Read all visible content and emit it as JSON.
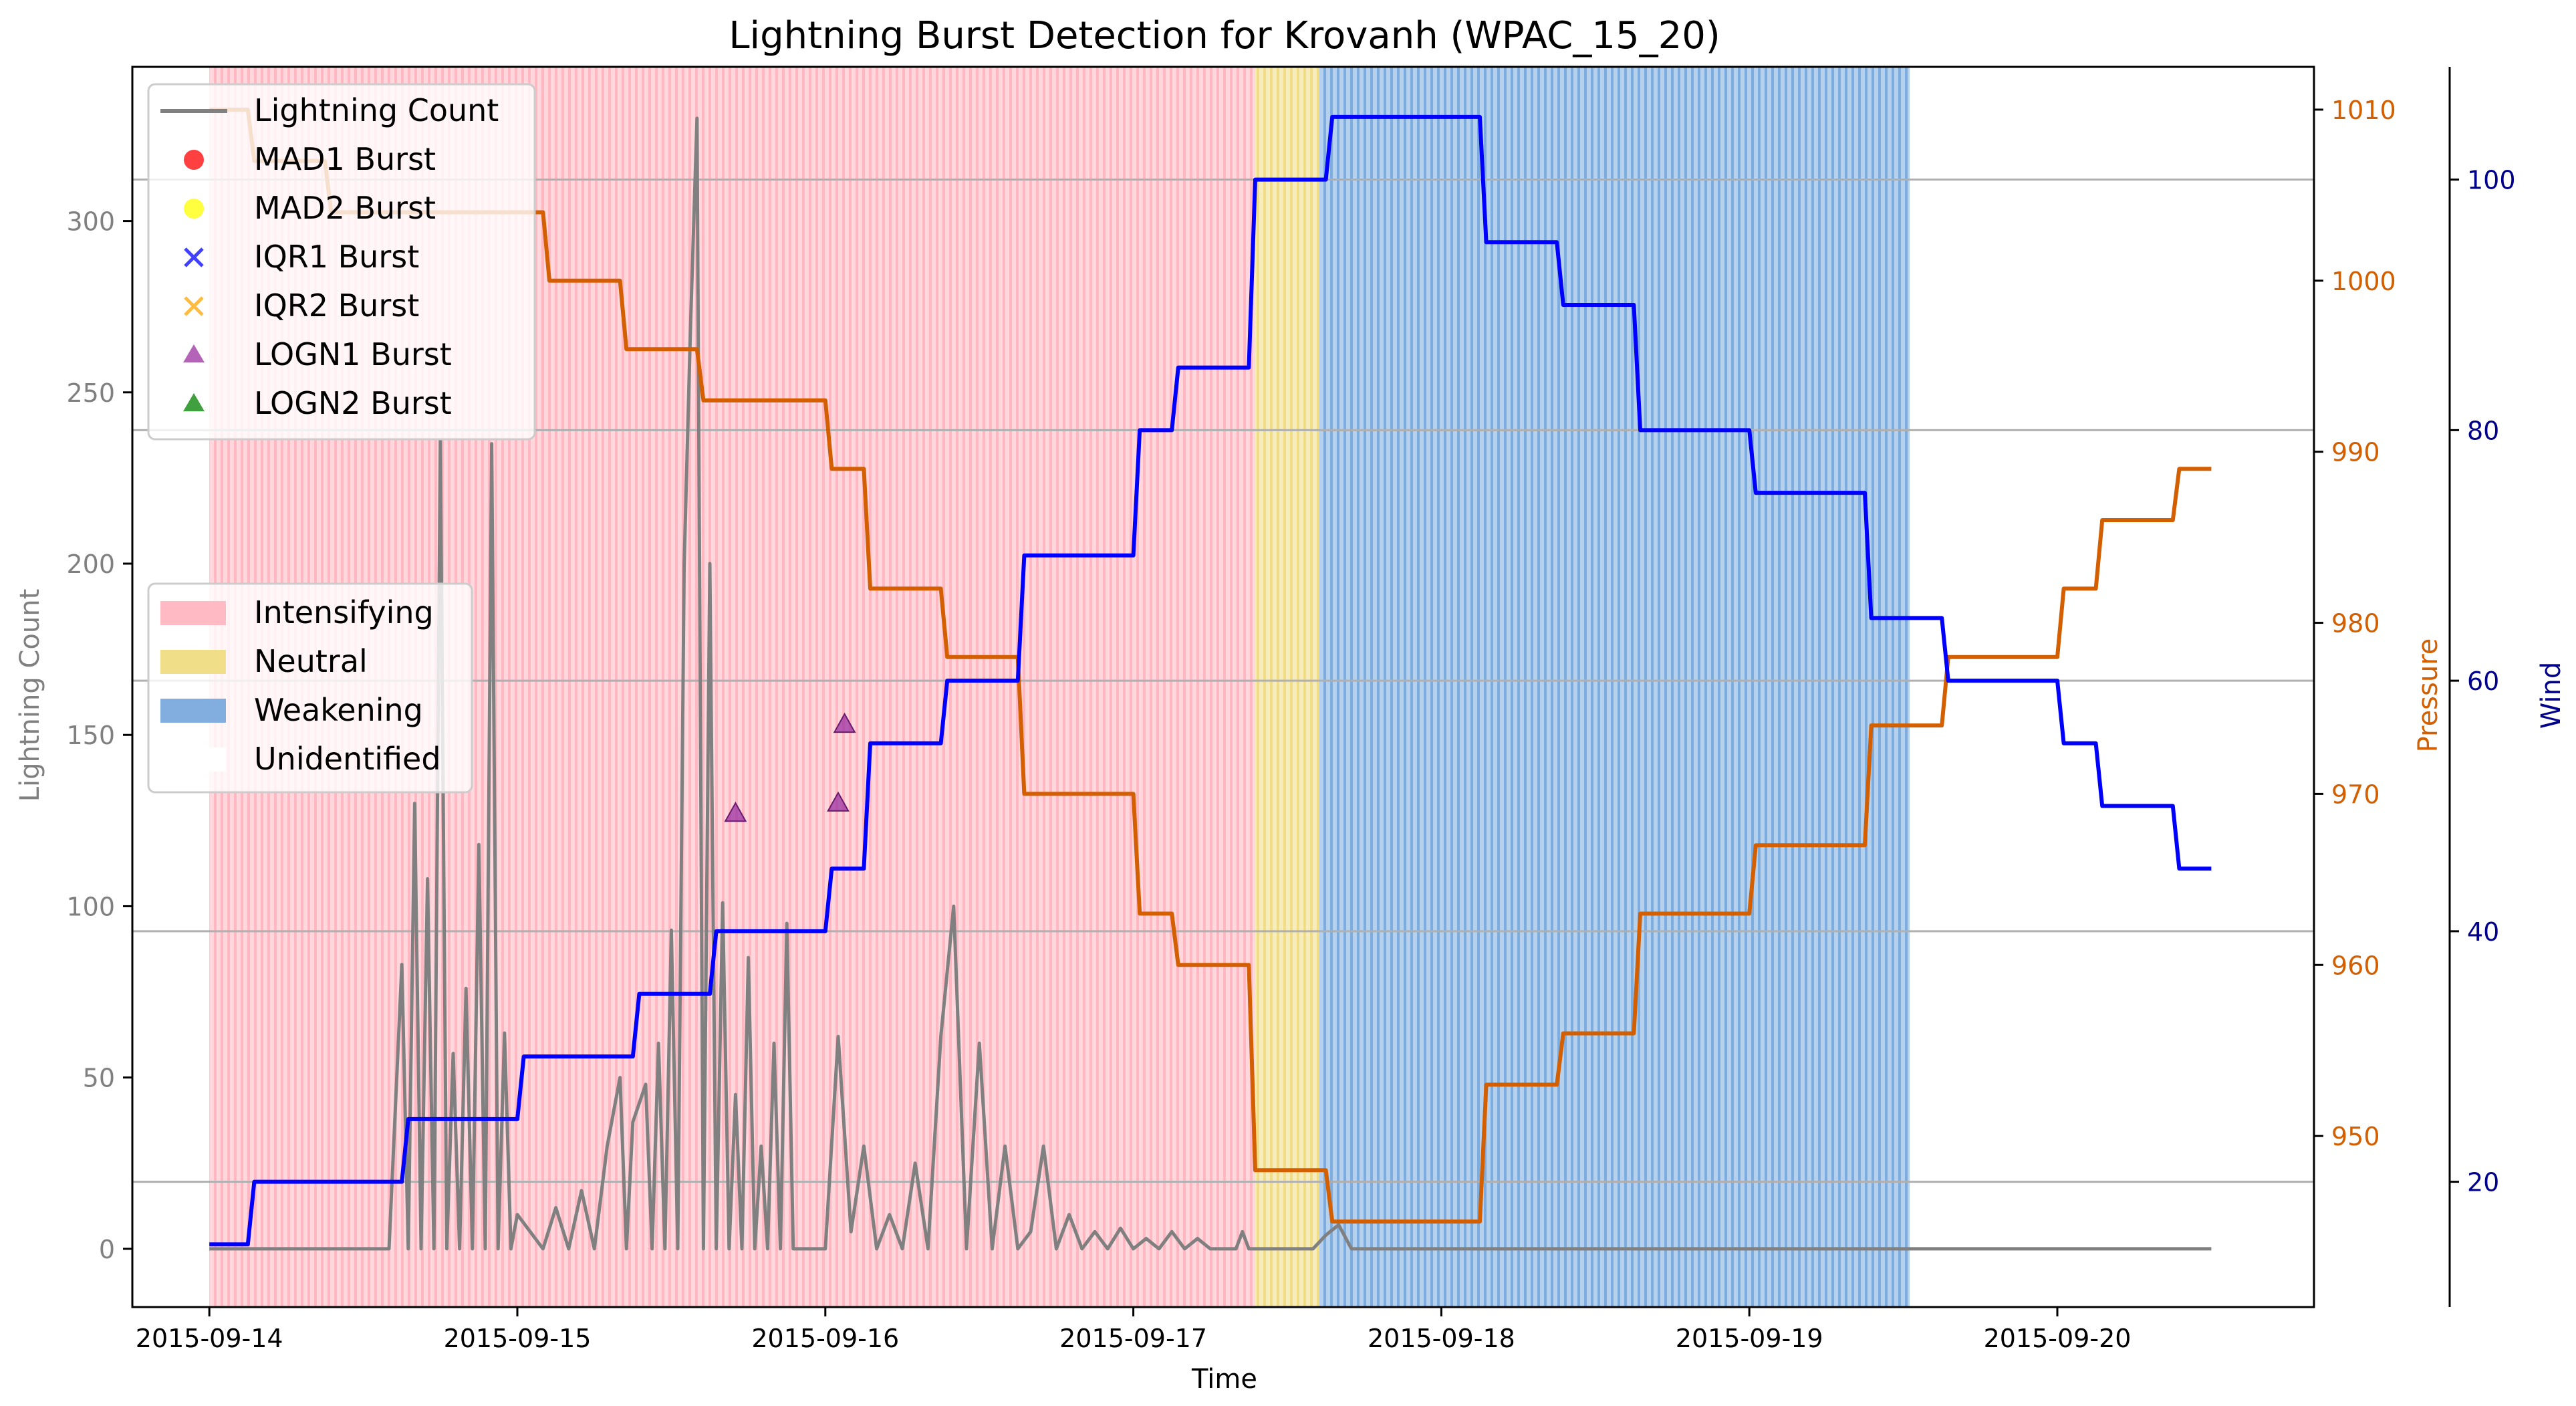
{
  "chart_data": {
    "type": "line",
    "title": "Lightning Burst Detection for Krovanh (WPAC_15_20)",
    "xlabel": "Time",
    "ylabel_left": "Lightning Count",
    "ylabel_pressure": "Pressure",
    "ylabel_wind": "Wind",
    "x_range": [
      "2015-09-13T18:00",
      "2015-09-20T20:00"
    ],
    "x_ticks": [
      "2015-09-14",
      "2015-09-15",
      "2015-09-16",
      "2015-09-17",
      "2015-09-18",
      "2015-09-19",
      "2015-09-20"
    ],
    "ylim_lightning": [
      -17,
      345
    ],
    "yticks_lightning": [
      0,
      50,
      100,
      150,
      200,
      250,
      300
    ],
    "ylim_pressure": [
      940,
      1012.5
    ],
    "yticks_pressure": [
      950,
      960,
      970,
      980,
      990,
      1000,
      1010
    ],
    "ylim_wind": [
      10,
      109
    ],
    "yticks_wind": [
      20,
      40,
      60,
      80,
      100
    ],
    "grid": "horizontal lines at wind ticks",
    "colors": {
      "lightning": "#808080",
      "pressure": "#d35f00",
      "wind": "#0000ff",
      "intensifying": "#ffb6c1",
      "neutral": "#f0dc82",
      "weakening": "#7aaadd",
      "logn1": "#9b30a0",
      "mad1": "#ff0000",
      "mad2": "#ffff00",
      "iqr1": "#0000ff",
      "iqr2": "#ffa500",
      "logn2": "#008000"
    },
    "phases": [
      {
        "name": "Intensifying",
        "start": "2015-09-14T00:00",
        "end": "2015-09-17T09:30"
      },
      {
        "name": "Neutral",
        "start": "2015-09-17T09:30",
        "end": "2015-09-17T14:30"
      },
      {
        "name": "Weakening",
        "start": "2015-09-17T14:30",
        "end": "2015-09-19T12:30"
      }
    ],
    "series": [
      {
        "name": "Lightning Count",
        "axis": "lightning",
        "points": [
          [
            "2015-09-14T00:00",
            0
          ],
          [
            "2015-09-14T06:00",
            0
          ],
          [
            "2015-09-14T12:00",
            0
          ],
          [
            "2015-09-14T14:00",
            0
          ],
          [
            "2015-09-14T15:00",
            83
          ],
          [
            "2015-09-14T15:30",
            0
          ],
          [
            "2015-09-14T16:00",
            130
          ],
          [
            "2015-09-14T16:30",
            0
          ],
          [
            "2015-09-14T17:00",
            108
          ],
          [
            "2015-09-14T17:30",
            0
          ],
          [
            "2015-09-14T18:00",
            236
          ],
          [
            "2015-09-14T18:30",
            0
          ],
          [
            "2015-09-14T19:00",
            57
          ],
          [
            "2015-09-14T19:30",
            0
          ],
          [
            "2015-09-14T20:00",
            76
          ],
          [
            "2015-09-14T20:30",
            0
          ],
          [
            "2015-09-14T21:00",
            118
          ],
          [
            "2015-09-14T21:30",
            0
          ],
          [
            "2015-09-14T22:00",
            235
          ],
          [
            "2015-09-14T22:30",
            0
          ],
          [
            "2015-09-14T23:00",
            63
          ],
          [
            "2015-09-14T23:30",
            0
          ],
          [
            "2015-09-15T00:00",
            10
          ],
          [
            "2015-09-15T02:00",
            0
          ],
          [
            "2015-09-15T03:00",
            12
          ],
          [
            "2015-09-15T04:00",
            0
          ],
          [
            "2015-09-15T05:00",
            17
          ],
          [
            "2015-09-15T06:00",
            0
          ],
          [
            "2015-09-15T07:00",
            30
          ],
          [
            "2015-09-15T08:00",
            50
          ],
          [
            "2015-09-15T08:30",
            0
          ],
          [
            "2015-09-15T09:00",
            37
          ],
          [
            "2015-09-15T10:00",
            48
          ],
          [
            "2015-09-15T10:30",
            0
          ],
          [
            "2015-09-15T11:00",
            60
          ],
          [
            "2015-09-15T11:30",
            0
          ],
          [
            "2015-09-15T12:00",
            93
          ],
          [
            "2015-09-15T12:30",
            0
          ],
          [
            "2015-09-15T13:00",
            200
          ],
          [
            "2015-09-15T13:30",
            270
          ],
          [
            "2015-09-15T14:00",
            330
          ],
          [
            "2015-09-15T14:30",
            0
          ],
          [
            "2015-09-15T15:00",
            200
          ],
          [
            "2015-09-15T15:30",
            0
          ],
          [
            "2015-09-15T16:00",
            101
          ],
          [
            "2015-09-15T16:30",
            0
          ],
          [
            "2015-09-15T17:00",
            45
          ],
          [
            "2015-09-15T17:30",
            0
          ],
          [
            "2015-09-15T18:00",
            85
          ],
          [
            "2015-09-15T18:30",
            0
          ],
          [
            "2015-09-15T19:00",
            30
          ],
          [
            "2015-09-15T19:30",
            0
          ],
          [
            "2015-09-15T20:00",
            60
          ],
          [
            "2015-09-15T20:30",
            0
          ],
          [
            "2015-09-15T21:00",
            95
          ],
          [
            "2015-09-15T21:30",
            0
          ],
          [
            "2015-09-15T22:00",
            0
          ],
          [
            "2015-09-16T00:00",
            0
          ],
          [
            "2015-09-16T01:00",
            62
          ],
          [
            "2015-09-16T02:00",
            5
          ],
          [
            "2015-09-16T03:00",
            30
          ],
          [
            "2015-09-16T04:00",
            0
          ],
          [
            "2015-09-16T05:00",
            10
          ],
          [
            "2015-09-16T06:00",
            0
          ],
          [
            "2015-09-16T07:00",
            25
          ],
          [
            "2015-09-16T08:00",
            0
          ],
          [
            "2015-09-16T09:00",
            62
          ],
          [
            "2015-09-16T10:00",
            100
          ],
          [
            "2015-09-16T11:00",
            0
          ],
          [
            "2015-09-16T12:00",
            60
          ],
          [
            "2015-09-16T13:00",
            0
          ],
          [
            "2015-09-16T14:00",
            30
          ],
          [
            "2015-09-16T15:00",
            0
          ],
          [
            "2015-09-16T16:00",
            5
          ],
          [
            "2015-09-16T17:00",
            30
          ],
          [
            "2015-09-16T18:00",
            0
          ],
          [
            "2015-09-16T19:00",
            10
          ],
          [
            "2015-09-16T20:00",
            0
          ],
          [
            "2015-09-16T21:00",
            5
          ],
          [
            "2015-09-16T22:00",
            0
          ],
          [
            "2015-09-16T23:00",
            6
          ],
          [
            "2015-09-17T00:00",
            0
          ],
          [
            "2015-09-17T01:00",
            3
          ],
          [
            "2015-09-17T02:00",
            0
          ],
          [
            "2015-09-17T03:00",
            5
          ],
          [
            "2015-09-17T04:00",
            0
          ],
          [
            "2015-09-17T05:00",
            3
          ],
          [
            "2015-09-17T06:00",
            0
          ],
          [
            "2015-09-17T07:00",
            0
          ],
          [
            "2015-09-17T08:00",
            0
          ],
          [
            "2015-09-17T08:30",
            5
          ],
          [
            "2015-09-17T09:00",
            0
          ],
          [
            "2015-09-17T10:00",
            0
          ],
          [
            "2015-09-17T11:00",
            0
          ],
          [
            "2015-09-17T12:00",
            0
          ],
          [
            "2015-09-17T13:00",
            0
          ],
          [
            "2015-09-17T14:00",
            0
          ],
          [
            "2015-09-17T15:00",
            4
          ],
          [
            "2015-09-17T16:00",
            7
          ],
          [
            "2015-09-17T17:00",
            0
          ],
          [
            "2015-09-17T18:00",
            0
          ],
          [
            "2015-09-17T19:00",
            0
          ],
          [
            "2015-09-17T20:00",
            0
          ],
          [
            "2015-09-18T00:00",
            0
          ],
          [
            "2015-09-19T00:00",
            0
          ],
          [
            "2015-09-20T00:00",
            0
          ],
          [
            "2015-09-20T12:00",
            0
          ]
        ]
      },
      {
        "name": "Pressure",
        "axis": "pressure",
        "points": [
          [
            "2015-09-14T00:00",
            1010
          ],
          [
            "2015-09-14T03:00",
            1010
          ],
          [
            "2015-09-14T03:30",
            1007
          ],
          [
            "2015-09-14T09:00",
            1007
          ],
          [
            "2015-09-14T09:30",
            1004
          ],
          [
            "2015-09-15T02:00",
            1004
          ],
          [
            "2015-09-15T02:30",
            1000
          ],
          [
            "2015-09-15T08:00",
            1000
          ],
          [
            "2015-09-15T08:30",
            996
          ],
          [
            "2015-09-15T14:00",
            996
          ],
          [
            "2015-09-15T14:30",
            993
          ],
          [
            "2015-09-16T00:00",
            993
          ],
          [
            "2015-09-16T00:30",
            989
          ],
          [
            "2015-09-16T03:00",
            989
          ],
          [
            "2015-09-16T03:30",
            982
          ],
          [
            "2015-09-16T09:00",
            982
          ],
          [
            "2015-09-16T09:30",
            978
          ],
          [
            "2015-09-16T15:00",
            978
          ],
          [
            "2015-09-16T15:30",
            970
          ],
          [
            "2015-09-17T00:00",
            970
          ],
          [
            "2015-09-17T00:30",
            963
          ],
          [
            "2015-09-17T03:00",
            963
          ],
          [
            "2015-09-17T03:30",
            960
          ],
          [
            "2015-09-17T09:00",
            960
          ],
          [
            "2015-09-17T09:30",
            948
          ],
          [
            "2015-09-17T15:00",
            948
          ],
          [
            "2015-09-17T15:30",
            945
          ],
          [
            "2015-09-18T03:00",
            945
          ],
          [
            "2015-09-18T03:30",
            953
          ],
          [
            "2015-09-18T09:00",
            953
          ],
          [
            "2015-09-18T09:30",
            956
          ],
          [
            "2015-09-18T15:00",
            956
          ],
          [
            "2015-09-18T15:30",
            963
          ],
          [
            "2015-09-19T00:00",
            963
          ],
          [
            "2015-09-19T00:30",
            967
          ],
          [
            "2015-09-19T09:00",
            967
          ],
          [
            "2015-09-19T09:30",
            974
          ],
          [
            "2015-09-19T15:00",
            974
          ],
          [
            "2015-09-19T15:30",
            978
          ],
          [
            "2015-09-20T00:00",
            978
          ],
          [
            "2015-09-20T00:30",
            982
          ],
          [
            "2015-09-20T03:00",
            982
          ],
          [
            "2015-09-20T03:30",
            986
          ],
          [
            "2015-09-20T09:00",
            986
          ],
          [
            "2015-09-20T09:30",
            989
          ],
          [
            "2015-09-20T12:00",
            989
          ]
        ]
      },
      {
        "name": "Wind",
        "axis": "wind",
        "points": [
          [
            "2015-09-14T00:00",
            15
          ],
          [
            "2015-09-14T03:00",
            15
          ],
          [
            "2015-09-14T03:30",
            20
          ],
          [
            "2015-09-14T15:00",
            20
          ],
          [
            "2015-09-14T15:30",
            25
          ],
          [
            "2015-09-15T00:00",
            25
          ],
          [
            "2015-09-15T00:30",
            30
          ],
          [
            "2015-09-15T09:00",
            30
          ],
          [
            "2015-09-15T09:30",
            35
          ],
          [
            "2015-09-15T15:00",
            35
          ],
          [
            "2015-09-15T15:30",
            40
          ],
          [
            "2015-09-16T00:00",
            40
          ],
          [
            "2015-09-16T00:30",
            45
          ],
          [
            "2015-09-16T03:00",
            45
          ],
          [
            "2015-09-16T03:30",
            55
          ],
          [
            "2015-09-16T09:00",
            55
          ],
          [
            "2015-09-16T09:30",
            60
          ],
          [
            "2015-09-16T15:00",
            60
          ],
          [
            "2015-09-16T15:30",
            70
          ],
          [
            "2015-09-17T00:00",
            70
          ],
          [
            "2015-09-17T00:30",
            80
          ],
          [
            "2015-09-17T03:00",
            80
          ],
          [
            "2015-09-17T03:30",
            85
          ],
          [
            "2015-09-17T09:00",
            85
          ],
          [
            "2015-09-17T09:30",
            100
          ],
          [
            "2015-09-17T15:00",
            100
          ],
          [
            "2015-09-17T15:30",
            105
          ],
          [
            "2015-09-18T03:00",
            105
          ],
          [
            "2015-09-18T03:30",
            95
          ],
          [
            "2015-09-18T09:00",
            95
          ],
          [
            "2015-09-18T09:30",
            90
          ],
          [
            "2015-09-18T15:00",
            90
          ],
          [
            "2015-09-18T15:30",
            80
          ],
          [
            "2015-09-19T00:00",
            80
          ],
          [
            "2015-09-19T00:30",
            75
          ],
          [
            "2015-09-19T09:00",
            75
          ],
          [
            "2015-09-19T09:30",
            65
          ],
          [
            "2015-09-19T15:00",
            65
          ],
          [
            "2015-09-19T15:30",
            60
          ],
          [
            "2015-09-20T00:00",
            60
          ],
          [
            "2015-09-20T00:30",
            55
          ],
          [
            "2015-09-20T03:00",
            55
          ],
          [
            "2015-09-20T03:30",
            50
          ],
          [
            "2015-09-20T09:00",
            50
          ],
          [
            "2015-09-20T09:30",
            45
          ],
          [
            "2015-09-20T12:00",
            45
          ]
        ]
      }
    ],
    "bursts": [
      {
        "type": "LOGN1 Burst",
        "time": "2015-09-15T17:00",
        "count": 127
      },
      {
        "type": "LOGN1 Burst",
        "time": "2015-09-16T01:00",
        "count": 130
      },
      {
        "type": "LOGN1 Burst",
        "time": "2015-09-16T01:30",
        "count": 153
      }
    ],
    "legend_top": {
      "placement": "upper-left",
      "items": [
        {
          "label": "Lightning Count",
          "kind": "line",
          "color": "#808080"
        },
        {
          "label": "MAD1 Burst",
          "kind": "circle",
          "color": "#ff0000"
        },
        {
          "label": "MAD2 Burst",
          "kind": "circle",
          "color": "#ffff00"
        },
        {
          "label": "IQR1 Burst",
          "kind": "x",
          "color": "#0000ff"
        },
        {
          "label": "IQR2 Burst",
          "kind": "x",
          "color": "#ffa500"
        },
        {
          "label": "LOGN1 Burst",
          "kind": "triangle",
          "color": "#9b30a0"
        },
        {
          "label": "LOGN2 Burst",
          "kind": "triangle",
          "color": "#008000"
        }
      ]
    },
    "legend_phase": {
      "placement": "center-left",
      "items": [
        {
          "label": "Intensifying",
          "color": "#ffb6c1"
        },
        {
          "label": "Neutral",
          "color": "#f0dc82"
        },
        {
          "label": "Weakening",
          "color": "#7aaadd"
        },
        {
          "label": "Unidentified",
          "color": "#ffffff"
        }
      ]
    }
  }
}
